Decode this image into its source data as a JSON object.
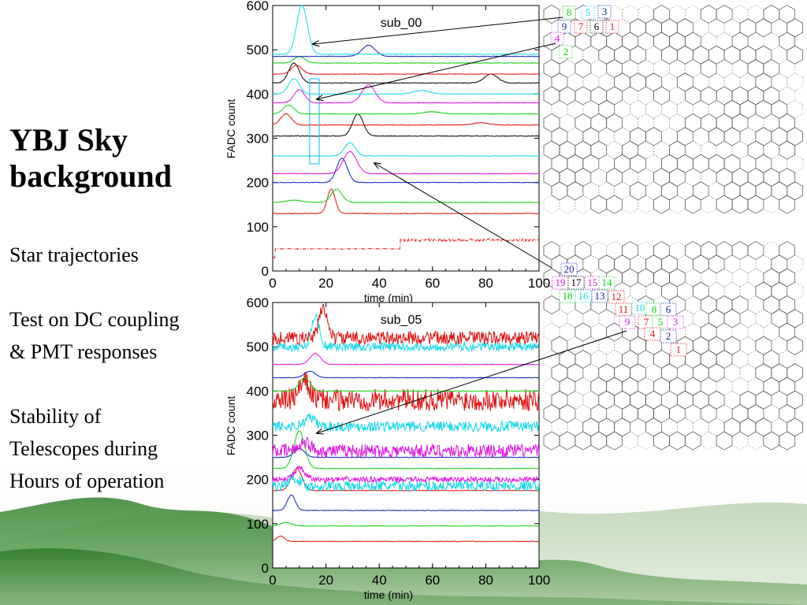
{
  "slide": {
    "title_line1": "YBJ Sky",
    "title_line2": "background",
    "bullets": [
      "Star trajectories",
      "Test on DC coupling",
      "& PMT responses",
      "Stability of",
      "Telescopes during",
      "Hours of operation"
    ]
  },
  "colors": {
    "red": "#e01010",
    "green": "#10d010",
    "blue": "#1020c0",
    "cyan": "#10d8e8",
    "magenta": "#e010e0",
    "black": "#000000"
  },
  "chart_data": [
    {
      "type": "line",
      "title": "sub_00",
      "xlabel": "time   (min)",
      "ylabel": "FADC count",
      "xlim": [
        0,
        100
      ],
      "ylim": [
        0,
        600
      ],
      "x_ticks": [
        "0",
        "20",
        "40",
        "60",
        "80",
        "100"
      ],
      "y_ticks": [
        "0",
        "100",
        "200",
        "300",
        "400",
        "500",
        "600"
      ],
      "grid": false,
      "series": [
        {
          "color": "red",
          "baseline": 50,
          "peaks": [],
          "style": "dashdot_step",
          "step_at": 48,
          "step_to": 70
        },
        {
          "color": "red",
          "baseline": 130,
          "peaks": [
            [
              22,
              55,
              1.5
            ]
          ]
        },
        {
          "color": "green",
          "baseline": 155,
          "peaks": [
            [
              24,
              30,
              2
            ],
            [
              8,
              5,
              3
            ]
          ]
        },
        {
          "color": "blue",
          "baseline": 200,
          "peaks": [
            [
              26,
              55,
              2
            ]
          ]
        },
        {
          "color": "magenta",
          "baseline": 220,
          "peaks": [
            [
              29,
              50,
              2.5
            ]
          ]
        },
        {
          "color": "cyan",
          "baseline": 260,
          "peaks": [
            [
              29,
              30,
              2
            ]
          ]
        },
        {
          "color": "black",
          "baseline": 305,
          "peaks": [
            [
              32,
              50,
              2
            ]
          ]
        },
        {
          "color": "red",
          "baseline": 330,
          "peaks": [
            [
              5,
              25,
              2
            ],
            [
              78,
              5,
              3
            ]
          ]
        },
        {
          "color": "green",
          "baseline": 355,
          "peaks": [
            [
              6,
              20,
              2
            ],
            [
              60,
              5,
              3
            ]
          ]
        },
        {
          "color": "magenta",
          "baseline": 380,
          "peaks": [
            [
              10,
              30,
              2
            ],
            [
              36,
              40,
              2.5
            ]
          ]
        },
        {
          "color": "cyan",
          "baseline": 400,
          "peaks": [
            [
              8,
              35,
              2
            ],
            [
              56,
              8,
              3
            ]
          ]
        },
        {
          "color": "black",
          "baseline": 425,
          "peaks": [
            [
              8,
              45,
              2
            ],
            [
              82,
              20,
              2.5
            ]
          ]
        },
        {
          "color": "red",
          "baseline": 445,
          "peaks": [
            [
              9,
              20,
              2
            ]
          ]
        },
        {
          "color": "green",
          "baseline": 470,
          "peaks": [
            [
              10,
              15,
              2
            ]
          ]
        },
        {
          "color": "blue",
          "baseline": 485,
          "peaks": [
            [
              36,
              25,
              2.5
            ]
          ]
        },
        {
          "color": "cyan",
          "baseline": 490,
          "peaks": [
            [
              11,
              110,
              2
            ]
          ]
        }
      ]
    },
    {
      "type": "line",
      "title": "sub_05",
      "xlabel": "time   (min)",
      "ylabel": "FADC count",
      "xlim": [
        0,
        100
      ],
      "ylim": [
        0,
        600
      ],
      "x_ticks": [
        "0",
        "20",
        "40",
        "60",
        "80",
        "100"
      ],
      "y_ticks": [
        "0",
        "100",
        "200",
        "300",
        "400",
        "500",
        "600"
      ],
      "grid": false,
      "series": [
        {
          "color": "red",
          "baseline": 60,
          "peaks": [
            [
              3,
              12,
              1.5
            ]
          ]
        },
        {
          "color": "green",
          "baseline": 95,
          "peaks": [
            [
              5,
              8,
              2
            ]
          ]
        },
        {
          "color": "blue",
          "baseline": 130,
          "peaks": [
            [
              7,
              35,
              1.5
            ]
          ]
        },
        {
          "color": "red",
          "baseline": 175,
          "peaks": [
            [
              9,
              50,
              2
            ]
          ]
        },
        {
          "color": "cyan",
          "baseline": 185,
          "peaks": [
            [
              8,
              20,
              2
            ]
          ],
          "noise": 12
        },
        {
          "color": "magenta",
          "baseline": 200,
          "peaks": [
            [
              10,
              25,
              2
            ]
          ],
          "noise": 6
        },
        {
          "color": "green",
          "baseline": 225,
          "peaks": [
            [
              10,
              85,
              2
            ]
          ]
        },
        {
          "color": "blue",
          "baseline": 250,
          "peaks": [
            [
              10,
              20,
              2
            ]
          ]
        },
        {
          "color": "magenta",
          "baseline": 265,
          "peaks": [
            [
              12,
              20,
              2
            ]
          ],
          "noise": 15
        },
        {
          "color": "cyan",
          "baseline": 320,
          "peaks": [
            [
              14,
              20,
              2
            ]
          ],
          "noise": 12
        },
        {
          "color": "red",
          "baseline": 380,
          "peaks": [
            [
              12,
              40,
              2
            ]
          ],
          "noise": 25
        },
        {
          "color": "green",
          "baseline": 400,
          "peaks": [
            [
              12,
              30,
              2
            ]
          ]
        },
        {
          "color": "blue",
          "baseline": 430,
          "peaks": [
            [
              14,
              15,
              2
            ]
          ]
        },
        {
          "color": "magenta",
          "baseline": 460,
          "peaks": [
            [
              16,
              25,
              2
            ]
          ]
        },
        {
          "color": "cyan",
          "baseline": 500,
          "peaks": [
            [
              16,
              70,
              1.5
            ]
          ],
          "noise": 10
        },
        {
          "color": "red",
          "baseline": 520,
          "peaks": [
            [
              19,
              70,
              1.5
            ]
          ],
          "noise": 15
        }
      ]
    }
  ],
  "camera_map_top": {
    "pixels": [
      {
        "label": "8",
        "color": "green"
      },
      {
        "label": "5",
        "color": "cyan"
      },
      {
        "label": "3",
        "color": "blue"
      },
      {
        "label": "9",
        "color": "blue"
      },
      {
        "label": "7",
        "color": "red"
      },
      {
        "label": "6",
        "color": "black"
      },
      {
        "label": "1",
        "color": "red"
      },
      {
        "label": "4",
        "color": "magenta"
      },
      {
        "label": "2",
        "color": "green"
      }
    ]
  },
  "camera_map_bottom": {
    "pixels": [
      {
        "label": "20",
        "color": "blue"
      },
      {
        "label": "19",
        "color": "magenta"
      },
      {
        "label": "17",
        "color": "black"
      },
      {
        "label": "15",
        "color": "magenta"
      },
      {
        "label": "14",
        "color": "green"
      },
      {
        "label": "18",
        "color": "green"
      },
      {
        "label": "16",
        "color": "cyan"
      },
      {
        "label": "13",
        "color": "blue"
      },
      {
        "label": "12",
        "color": "red"
      },
      {
        "label": "11",
        "color": "red"
      },
      {
        "label": "10",
        "color": "cyan"
      },
      {
        "label": "8",
        "color": "green"
      },
      {
        "label": "6",
        "color": "blue"
      },
      {
        "label": "9",
        "color": "magenta"
      },
      {
        "label": "7",
        "color": "red"
      },
      {
        "label": "5",
        "color": "green"
      },
      {
        "label": "3",
        "color": "magenta"
      },
      {
        "label": "4",
        "color": "red"
      },
      {
        "label": "2",
        "color": "blue"
      },
      {
        "label": "1",
        "color": "red"
      }
    ]
  }
}
